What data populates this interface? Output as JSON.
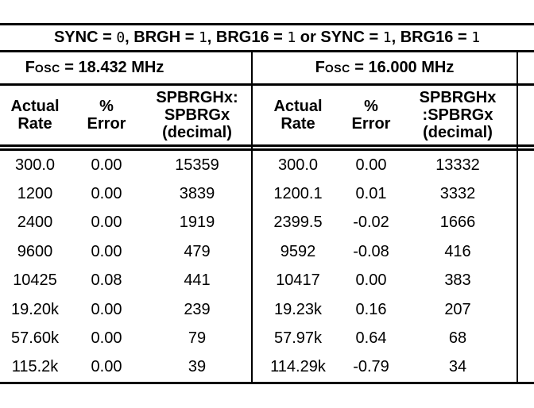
{
  "table": {
    "condition_header": {
      "full_text": "SYNC = 0, BRGH = 1, BRG16 = 1 or SYNC = 1, BRG16 = 1",
      "segments": [
        {
          "text": "SYNC = ",
          "mono": false
        },
        {
          "text": "0",
          "mono": true
        },
        {
          "text": ", BRGH = ",
          "mono": false
        },
        {
          "text": "1",
          "mono": true
        },
        {
          "text": ", BRG16 = ",
          "mono": false
        },
        {
          "text": "1",
          "mono": true
        },
        {
          "text": " or SYNC = ",
          "mono": false
        },
        {
          "text": "1",
          "mono": true
        },
        {
          "text": ", BRG16 = ",
          "mono": false
        },
        {
          "text": "1",
          "mono": true
        }
      ]
    },
    "groups": [
      {
        "fosc_label": {
          "prefix": "F",
          "smallcaps": "OSC",
          "rest": " = 18.432 MHz"
        },
        "columns": [
          [
            "Actual",
            "Rate"
          ],
          [
            "%",
            "Error"
          ],
          [
            "SPBRGHx:",
            "SPBRGx",
            "(decimal)"
          ]
        ],
        "rows": [
          [
            "300.0",
            "0.00",
            "15359"
          ],
          [
            "1200",
            "0.00",
            "3839"
          ],
          [
            "2400",
            "0.00",
            "1919"
          ],
          [
            "9600",
            "0.00",
            "479"
          ],
          [
            "10425",
            "0.08",
            "441"
          ],
          [
            "19.20k",
            "0.00",
            "239"
          ],
          [
            "57.60k",
            "0.00",
            "79"
          ],
          [
            "115.2k",
            "0.00",
            "39"
          ]
        ]
      },
      {
        "fosc_label": {
          "prefix": "F",
          "smallcaps": "OSC",
          "rest": " = 16.000 MHz"
        },
        "columns": [
          [
            "Actual",
            "Rate"
          ],
          [
            "%",
            "Error"
          ],
          [
            "SPBRGHx",
            ":SPBRGx",
            "(decimal)"
          ]
        ],
        "rows": [
          [
            "300.0",
            "0.00",
            "13332"
          ],
          [
            "1200.1",
            "0.01",
            "3332"
          ],
          [
            "2399.5",
            "-0.02",
            "1666"
          ],
          [
            "9592",
            "-0.08",
            "416"
          ],
          [
            "10417",
            "0.00",
            "383"
          ],
          [
            "19.23k",
            "0.16",
            "207"
          ],
          [
            "57.97k",
            "0.64",
            "68"
          ],
          [
            "114.29k",
            "-0.79",
            "34"
          ]
        ]
      }
    ],
    "colors": {
      "line": "#000000",
      "text": "#000000",
      "background": "#ffffff"
    }
  }
}
